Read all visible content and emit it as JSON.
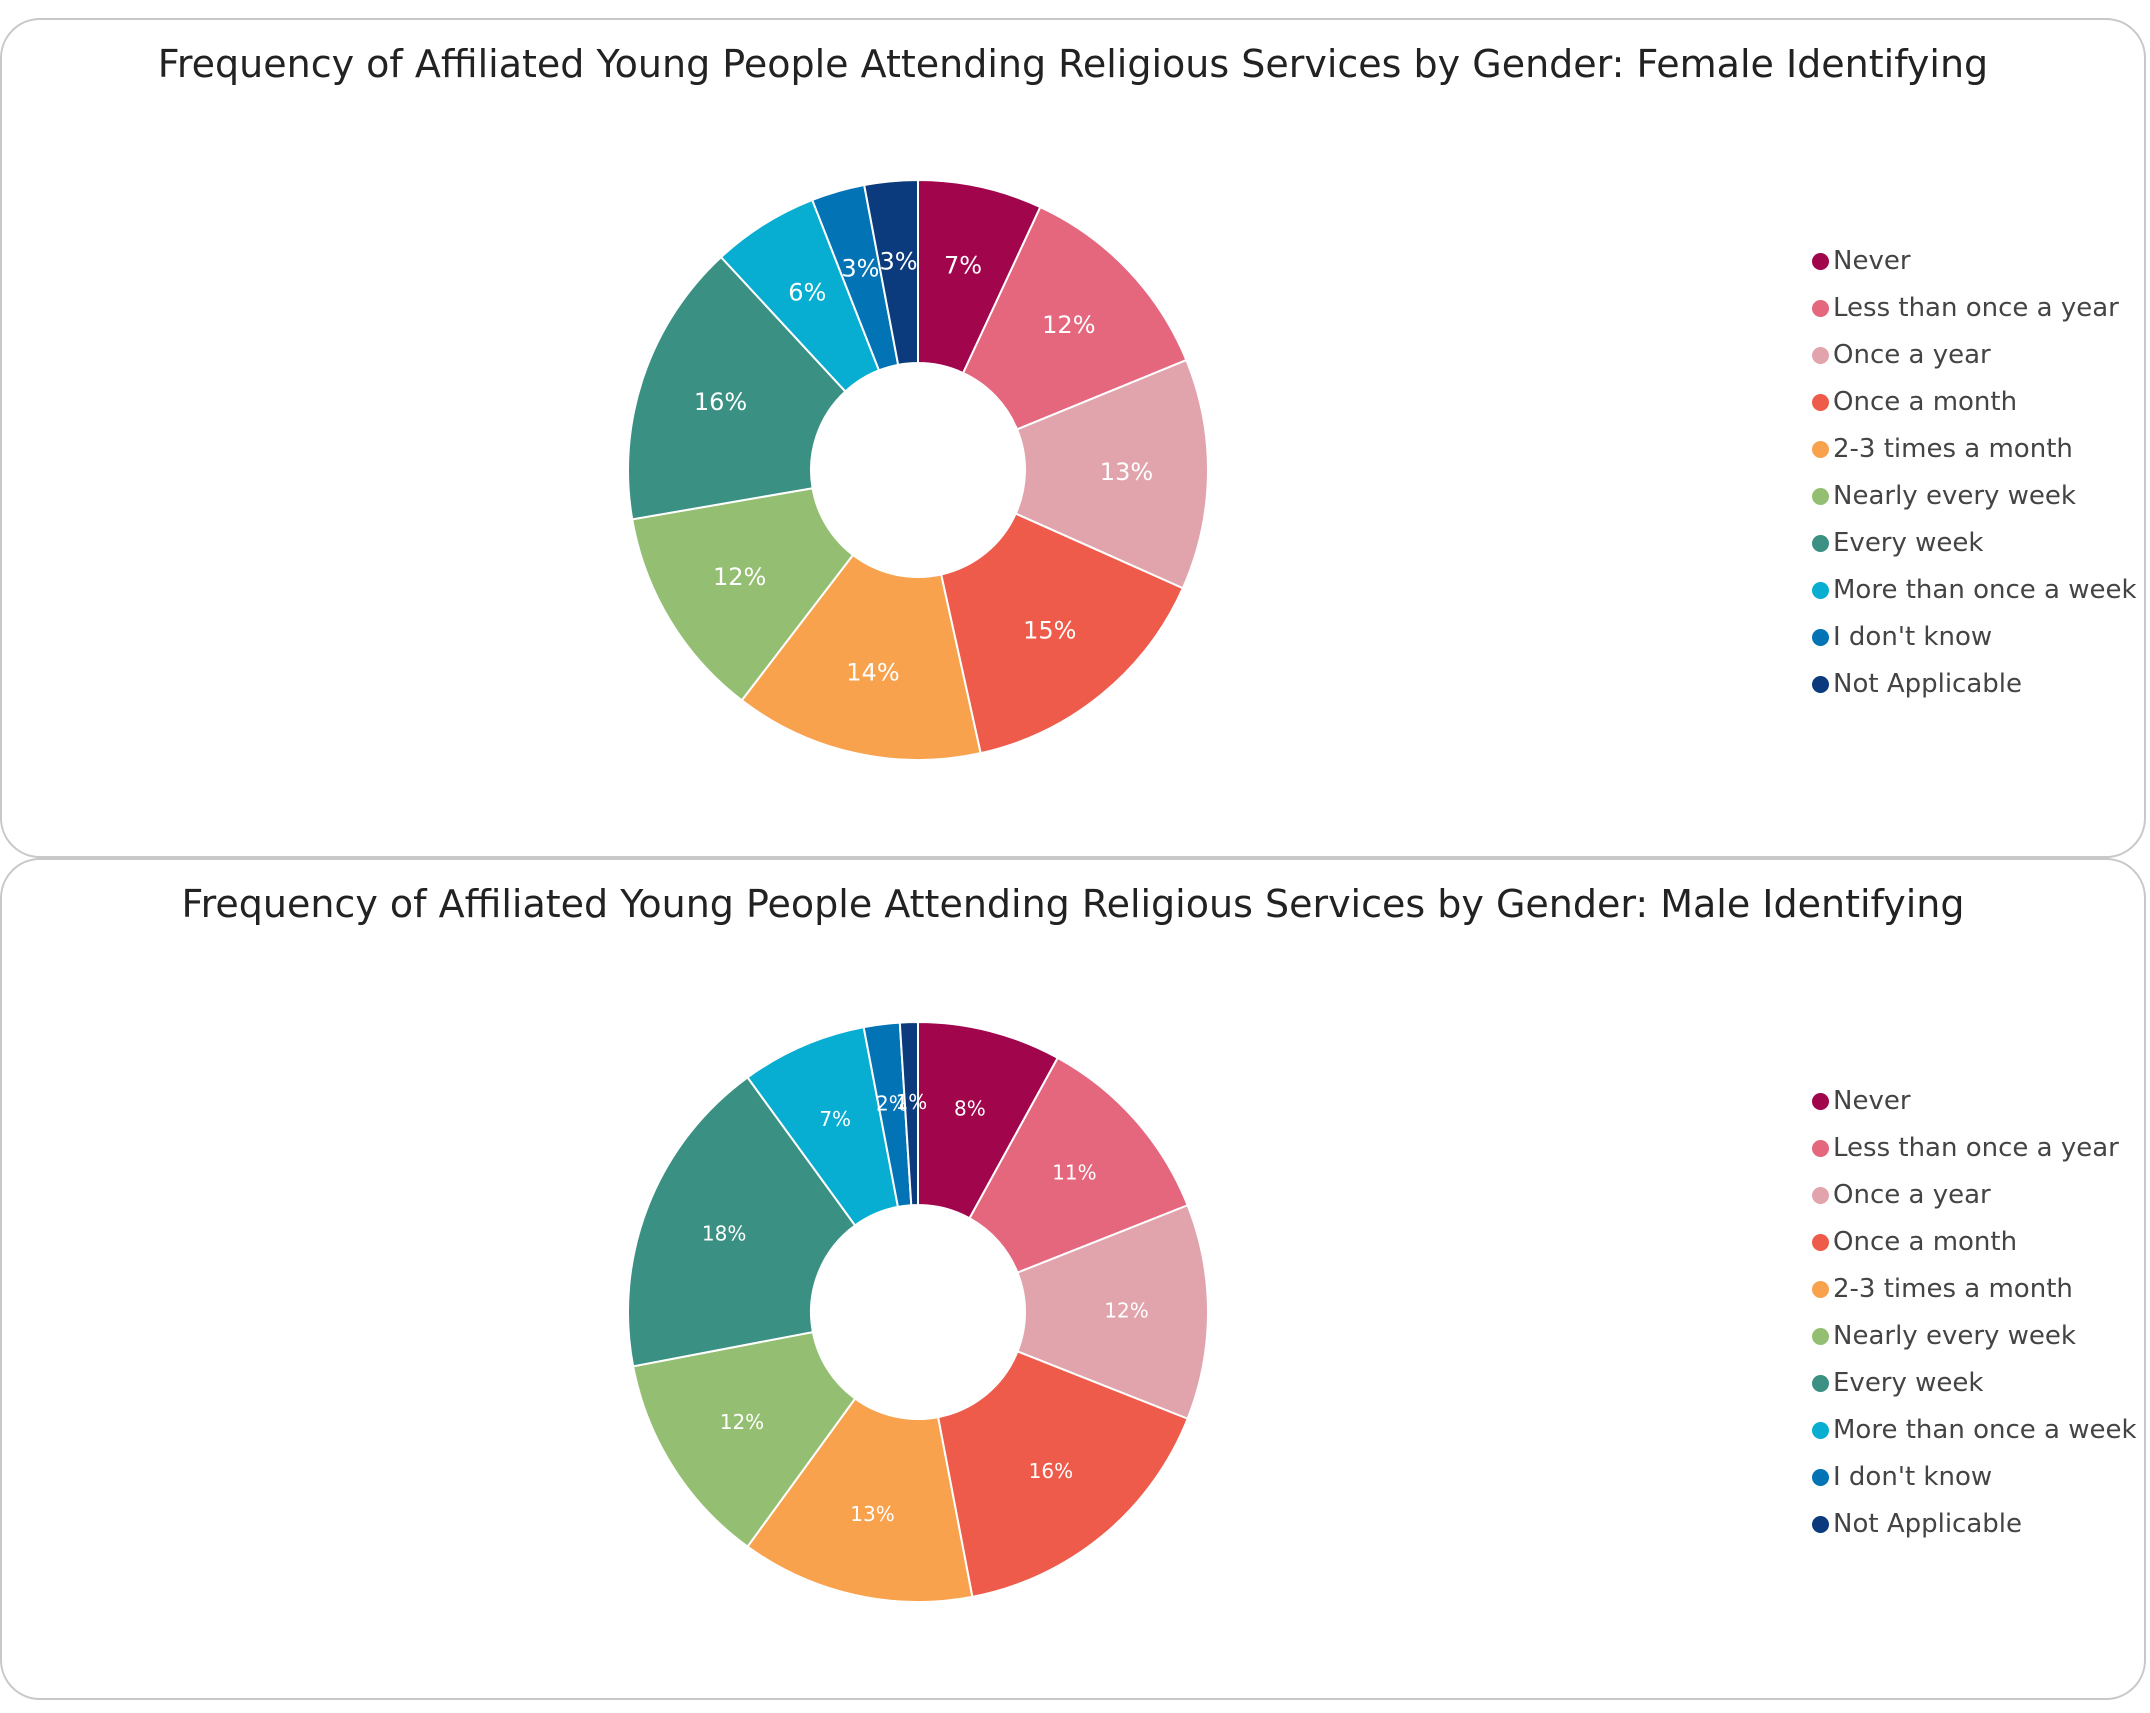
{
  "chart_data": [
    {
      "type": "pie",
      "title": "Frequency of Affiliated Young People Attending Religious Services by Gender: Female Identifying",
      "categories": [
        "Never",
        "Less than once a year",
        "Once a year",
        "Once a month",
        "2-3 times a month",
        "Nearly every week",
        "Every week",
        "More than once a week",
        "I don't know",
        "Not Applicable"
      ],
      "values": [
        7,
        12,
        13,
        15,
        14,
        12,
        16,
        6,
        3,
        3
      ],
      "labels": [
        "7%",
        "12%",
        "13%",
        "15%",
        "14%",
        "12%",
        "16%",
        "6%",
        "3%",
        "3%"
      ],
      "legend_position": "right"
    },
    {
      "type": "pie",
      "title": "Frequency of Affiliated Young People Attending Religious Services by Gender: Male Identifying",
      "categories": [
        "Never",
        "Less than once a year",
        "Once a year",
        "Once a month",
        "2-3 times a month",
        "Nearly every week",
        "Every week",
        "More than once a week",
        "I don't know",
        "Not Applicable"
      ],
      "values": [
        8,
        11,
        12,
        16,
        13,
        12,
        18,
        7,
        2,
        1
      ],
      "labels": [
        "8%",
        "11%",
        "12%",
        "16%",
        "13%",
        "12%",
        "18%",
        "7%",
        "2%",
        "1%"
      ],
      "legend_position": "right"
    }
  ],
  "colors": [
    "#a1054c",
    "#e5677e",
    "#e2a4ac",
    "#ef5b4a",
    "#f8a24e",
    "#94bf72",
    "#3a9082",
    "#08aed1",
    "#0274b6",
    "#0b3b7c"
  ]
}
